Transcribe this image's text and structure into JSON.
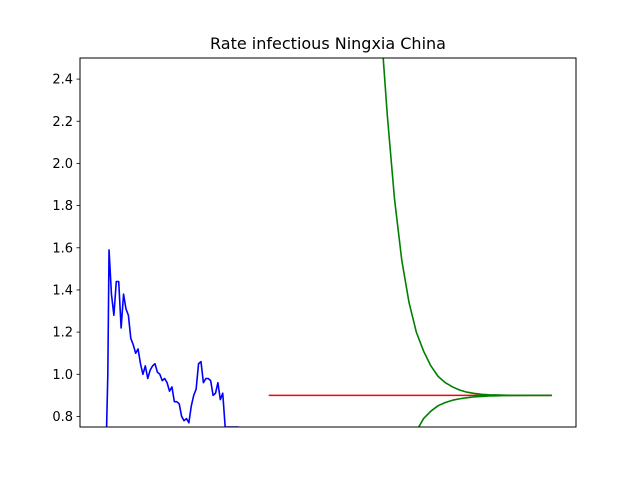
{
  "chart_data": {
    "type": "line",
    "title": "Rate infectious Ningxia China",
    "xlabel": "",
    "ylabel": "",
    "xticks_visible": false,
    "xlim": [
      -5,
      200
    ],
    "ylim": [
      0.75,
      2.5
    ],
    "yticks": [
      0.8,
      1.0,
      1.2,
      1.4,
      1.6,
      1.8,
      2.0,
      2.2,
      2.4
    ],
    "ytick_labels": [
      "0.8",
      "1.0",
      "1.2",
      "1.4",
      "1.6",
      "1.8",
      "2.0",
      "2.2",
      "2.4"
    ],
    "grid": false,
    "legend": "none",
    "series": [
      {
        "color": "#0000ff",
        "x": [
          6,
          6.5,
          7,
          8,
          9,
          10,
          11,
          12,
          13,
          14,
          15,
          16,
          17,
          18,
          19,
          20,
          21,
          22,
          23,
          24,
          25,
          26,
          27,
          28,
          29,
          30,
          31,
          32,
          33,
          34,
          35,
          36,
          37,
          38,
          39,
          40,
          41,
          42,
          43,
          44,
          45,
          46,
          47,
          48,
          49,
          50,
          51,
          52,
          53,
          54,
          55,
          56,
          57,
          58,
          59,
          60,
          60.5
        ],
        "y": [
          0.75,
          1.0,
          1.59,
          1.38,
          1.28,
          1.44,
          1.44,
          1.22,
          1.38,
          1.31,
          1.28,
          1.17,
          1.14,
          1.1,
          1.12,
          1.05,
          1.0,
          1.04,
          0.98,
          1.02,
          1.04,
          1.05,
          1.01,
          1.0,
          0.97,
          0.98,
          0.96,
          0.92,
          0.94,
          0.87,
          0.87,
          0.86,
          0.8,
          0.78,
          0.79,
          0.77,
          0.85,
          0.9,
          0.93,
          1.05,
          1.06,
          0.96,
          0.98,
          0.98,
          0.97,
          0.9,
          0.91,
          0.96,
          0.88,
          0.91,
          0.75,
          0.75,
          0.75,
          0.75,
          0.75,
          0.75,
          0.75
        ]
      },
      {
        "color": "#ff0000",
        "x": [
          73,
          190
        ],
        "y": [
          0.9,
          0.9
        ]
      },
      {
        "color": "#008000",
        "equilibrium": 0.9,
        "x": [
          120,
          122,
          125,
          128,
          131,
          134,
          137,
          140,
          143,
          146,
          149,
          152,
          155,
          158,
          161,
          164,
          167,
          170,
          175,
          180,
          185,
          190
        ],
        "y": [
          2.55,
          2.23,
          1.83,
          1.54,
          1.34,
          1.2,
          1.11,
          1.04,
          0.99,
          0.96,
          0.94,
          0.925,
          0.915,
          0.909,
          0.905,
          0.903,
          0.902,
          0.901,
          0.9,
          0.9,
          0.9,
          0.9
        ]
      },
      {
        "color": "#008000",
        "x": [
          135,
          137,
          140,
          143,
          146,
          149,
          152,
          155,
          158,
          161,
          164,
          167,
          170,
          175,
          180,
          185,
          190
        ],
        "y": [
          0.75,
          0.79,
          0.825,
          0.851,
          0.866,
          0.877,
          0.884,
          0.889,
          0.893,
          0.895,
          0.897,
          0.898,
          0.899,
          0.8995,
          0.9,
          0.9,
          0.9
        ]
      }
    ]
  }
}
